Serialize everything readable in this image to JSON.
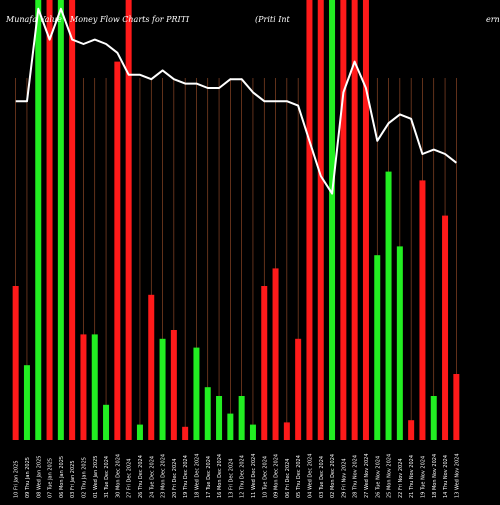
{
  "chart_data": {
    "type": "bar",
    "title_left": "Munafa Value",
    "title_middle": "Money Flow  Charts for PRITI",
    "title_right": "(Priti  Int",
    "title_far_right": "ern",
    "ylim": [
      0,
      100
    ],
    "colors": {
      "background": "#000000",
      "grid": "#a0522d",
      "up": "#22ee22",
      "down": "#ff1a1a",
      "line": "#ffffff"
    },
    "bars": [
      {
        "x": "10 Fri Jan 2025",
        "color": "down",
        "value": 35
      },
      {
        "x": "09 Thu Jan 2025",
        "color": "up",
        "value": 17
      },
      {
        "x": "08 Wed Jan 2025",
        "color": "up",
        "value": 100
      },
      {
        "x": "07 Tue Jan 2025",
        "color": "down",
        "value": 100
      },
      {
        "x": "06 Mon Jan 2025",
        "color": "up",
        "value": 100
      },
      {
        "x": "03 Fri Jan 2025",
        "color": "down",
        "value": 100
      },
      {
        "x": "02 Thu Jan 2025",
        "color": "down",
        "value": 24
      },
      {
        "x": "01 Wed Jan 2025",
        "color": "up",
        "value": 24
      },
      {
        "x": "31 Tue Dec 2024",
        "color": "up",
        "value": 8
      },
      {
        "x": "30 Mon Dec 2024",
        "color": "down",
        "value": 86
      },
      {
        "x": "27 Fri Dec 2024",
        "color": "down",
        "value": 100
      },
      {
        "x": "26 Thu Dec 2024",
        "color": "up",
        "value": 3.5
      },
      {
        "x": "24 Tue Dec 2024",
        "color": "down",
        "value": 33
      },
      {
        "x": "23 Mon Dec 2024",
        "color": "up",
        "value": 23
      },
      {
        "x": "20 Fri Dec 2024",
        "color": "down",
        "value": 25
      },
      {
        "x": "19 Thu Dec 2024",
        "color": "down",
        "value": 3
      },
      {
        "x": "18 Wed Dec 2024",
        "color": "up",
        "value": 21
      },
      {
        "x": "17 Tue Dec 2024",
        "color": "up",
        "value": 12
      },
      {
        "x": "16 Mon Dec 2024",
        "color": "up",
        "value": 10
      },
      {
        "x": "13 Fri Dec 2024",
        "color": "up",
        "value": 6
      },
      {
        "x": "12 Thu Dec 2024",
        "color": "up",
        "value": 10
      },
      {
        "x": "11 Wed Dec 2024",
        "color": "up",
        "value": 3.5
      },
      {
        "x": "10 Tue Dec 2024",
        "color": "down",
        "value": 35
      },
      {
        "x": "09 Mon Dec 2024",
        "color": "down",
        "value": 39
      },
      {
        "x": "06 Fri Dec 2024",
        "color": "down",
        "value": 4
      },
      {
        "x": "05 Thu Dec 2024",
        "color": "down",
        "value": 23
      },
      {
        "x": "04 Wed Dec 2024",
        "color": "down",
        "value": 100
      },
      {
        "x": "03 Tue Dec 2024",
        "color": "down",
        "value": 100
      },
      {
        "x": "02 Mon Dec 2024",
        "color": "up",
        "value": 100
      },
      {
        "x": "29 Fri Nov 2024",
        "color": "down",
        "value": 100
      },
      {
        "x": "28 Thu Nov 2024",
        "color": "down",
        "value": 100
      },
      {
        "x": "27 Wed Nov 2024",
        "color": "down",
        "value": 100
      },
      {
        "x": "26 Tue Nov 2024",
        "color": "up",
        "value": 42
      },
      {
        "x": "25 Mon Nov 2024",
        "color": "up",
        "value": 61
      },
      {
        "x": "22 Fri Nov 2024",
        "color": "up",
        "value": 44
      },
      {
        "x": "21 Thu Nov 2024",
        "color": "down",
        "value": 4.5
      },
      {
        "x": "19 Tue Nov 2024",
        "color": "down",
        "value": 59
      },
      {
        "x": "18 Mon Nov 2024",
        "color": "up",
        "value": 10
      },
      {
        "x": "14 Thu Nov 2024",
        "color": "down",
        "value": 51
      },
      {
        "x": "13 Wed Nov 2024",
        "color": "down",
        "value": 15
      }
    ],
    "mfi_line": [
      77,
      77,
      98,
      91,
      98,
      91,
      90,
      91,
      90,
      88,
      83,
      83,
      82,
      84,
      82,
      81,
      81,
      80,
      80,
      82,
      82,
      79,
      77,
      77,
      77,
      76,
      68,
      60,
      56,
      79,
      86,
      80,
      68,
      72,
      74,
      73,
      65,
      66,
      65,
      63
    ],
    "x_labels": [
      "10 Fri Jan 2025",
      "09 Thu Jan 2025",
      "08 Wed Jan 2025",
      "07 Tue Jan 2025",
      "06 Mon Jan 2025",
      "03 Fri Jan 2025",
      "02 Thu Jan 2025",
      "01 Wed Jan 2025",
      "31 Tue Dec 2024",
      "30 Mon Dec 2024",
      "27 Fri Dec 2024",
      "26 Thu Dec 2024",
      "24 Tue Dec 2024",
      "23 Mon Dec 2024",
      "20 Fri Dec 2024",
      "19 Thu Dec 2024",
      "18 Wed Dec 2024",
      "17 Tue Dec 2024",
      "16 Mon Dec 2024",
      "13 Fri Dec 2024",
      "12 Thu Dec 2024",
      "11 Wed Dec 2024",
      "10 Tue Dec 2024",
      "09 Mon Dec 2024",
      "06 Fri Dec 2024",
      "05 Thu Dec 2024",
      "04 Wed Dec 2024",
      "03 Tue Dec 2024",
      "02 Mon Dec 2024",
      "29 Fri Nov 2024",
      "28 Thu Nov 2024",
      "27 Wed Nov 2024",
      "26 Tue Nov 2024",
      "25 Mon Nov 2024",
      "22 Fri Nov 2024",
      "21 Thu Nov 2024",
      "19 Tue Nov 2024",
      "18 Mon Nov 2024",
      "14 Thu Nov 2024",
      "13 Wed Nov 2024"
    ]
  }
}
